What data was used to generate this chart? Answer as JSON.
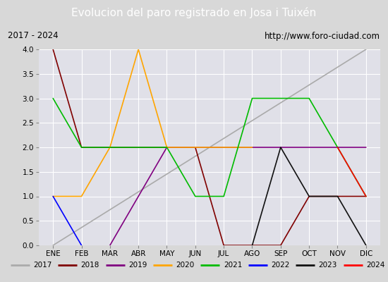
{
  "title": "Evolucion del paro registrado en Josa i Tuixén",
  "subtitle_left": "2017 - 2024",
  "subtitle_right": "http://www.foro-ciudad.com",
  "months": [
    "ENE",
    "FEB",
    "MAR",
    "ABR",
    "MAY",
    "JUN",
    "JUL",
    "AGO",
    "SEP",
    "OCT",
    "NOV",
    "DIC"
  ],
  "month_indices": [
    1,
    2,
    3,
    4,
    5,
    6,
    7,
    8,
    9,
    10,
    11,
    12
  ],
  "ylim": [
    0.0,
    4.0
  ],
  "yticks": [
    0.0,
    0.5,
    1.0,
    1.5,
    2.0,
    2.5,
    3.0,
    3.5,
    4.0
  ],
  "series": {
    "2017": {
      "color": "#aaaaaa",
      "values": [
        0.0,
        null,
        null,
        null,
        null,
        null,
        null,
        null,
        null,
        null,
        null,
        4.0
      ]
    },
    "2018": {
      "color": "#800000",
      "values": [
        4.0,
        2.0,
        2.0,
        2.0,
        2.0,
        2.0,
        0.0,
        0.0,
        0.0,
        1.0,
        1.0,
        1.0
      ]
    },
    "2019": {
      "color": "#800080",
      "values": [
        null,
        null,
        0.0,
        1.0,
        2.0,
        2.0,
        2.0,
        2.0,
        2.0,
        2.0,
        2.0,
        2.0
      ]
    },
    "2020": {
      "color": "#ffa500",
      "values": [
        1.0,
        1.0,
        2.0,
        4.0,
        2.0,
        2.0,
        2.0,
        2.0,
        null,
        null,
        null,
        null
      ]
    },
    "2021": {
      "color": "#00bb00",
      "values": [
        3.0,
        2.0,
        2.0,
        2.0,
        2.0,
        1.0,
        1.0,
        3.0,
        3.0,
        3.0,
        2.0,
        1.0
      ]
    },
    "2022": {
      "color": "#0000ff",
      "values": [
        1.0,
        0.0,
        null,
        null,
        null,
        null,
        null,
        null,
        null,
        null,
        null,
        null
      ]
    },
    "2023": {
      "color": "#111111",
      "values": [
        null,
        null,
        null,
        null,
        null,
        null,
        null,
        0.0,
        2.0,
        1.0,
        1.0,
        0.0
      ]
    },
    "2024": {
      "color": "#ff0000",
      "values": [
        null,
        null,
        null,
        null,
        null,
        null,
        null,
        null,
        null,
        null,
        2.0,
        1.0
      ]
    }
  },
  "bg_color": "#d8d8d8",
  "plot_bg_color": "#e0e0e8",
  "title_bg_color": "#4472c4",
  "title_text_color": "#ffffff",
  "header_bg_color": "#f0f0f0",
  "grid_color": "#ffffff",
  "legend_bg_color": "#f0f0f0"
}
